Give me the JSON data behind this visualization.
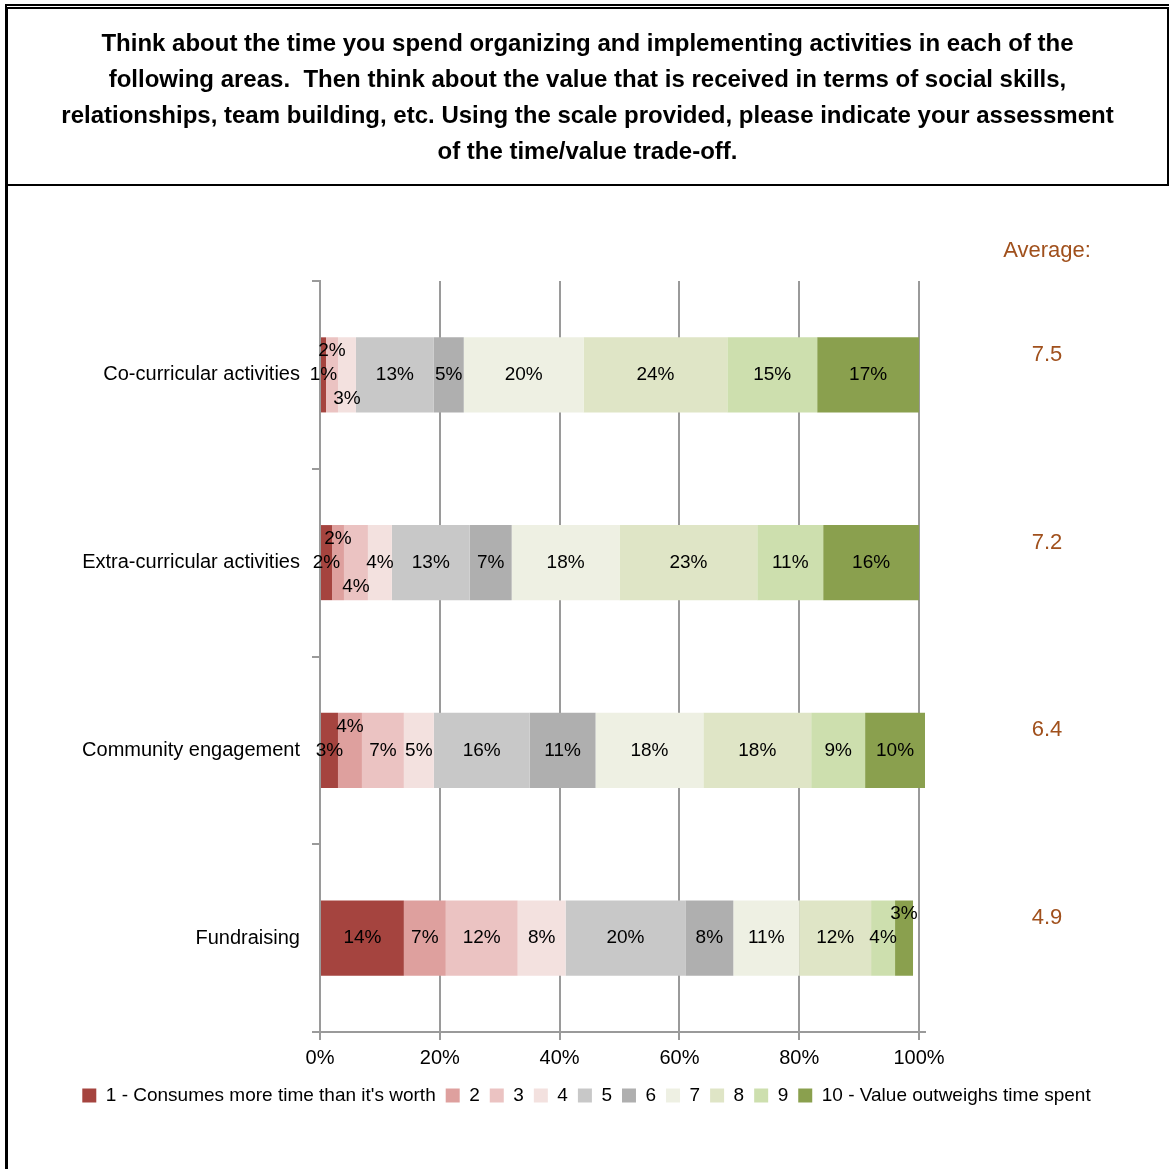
{
  "chart_data": {
    "type": "bar",
    "orientation": "horizontal",
    "stacked": true,
    "title": "Think about the time you spend organizing and implementing activities in each of the following areas.  Then think about the value that is received in terms of social skills, relationships, team building, etc. Using the scale provided, please indicate your assessment of the time/value trade-off.",
    "categories": [
      "Co-curricular activities",
      "Extra-curricular activities",
      "Community engagement",
      "Fundraising"
    ],
    "series": [
      {
        "name": "1 - Consumes more time than it's worth",
        "color": "#a5443f",
        "values": [
          1,
          2,
          3,
          14
        ],
        "value_labels": [
          "1%",
          "2%",
          "3%",
          "14%"
        ]
      },
      {
        "name": "2",
        "color": "#dea09e",
        "values": [
          0,
          2,
          4,
          7
        ],
        "value_labels": [
          null,
          "2%",
          "4%",
          "7%"
        ]
      },
      {
        "name": "3",
        "color": "#ebc3c2",
        "values": [
          2,
          4,
          7,
          12
        ],
        "value_labels": [
          "2%",
          "4%",
          "7%",
          "12%"
        ]
      },
      {
        "name": "4",
        "color": "#f3e1df",
        "values": [
          3,
          4,
          5,
          8
        ],
        "value_labels": [
          "3%",
          "4%",
          "5%",
          "8%"
        ]
      },
      {
        "name": "5",
        "color": "#c8c8c8",
        "values": [
          13,
          13,
          16,
          20
        ],
        "value_labels": [
          "13%",
          "13%",
          "16%",
          "20%"
        ]
      },
      {
        "name": "6",
        "color": "#afafaf",
        "values": [
          5,
          7,
          11,
          8
        ],
        "value_labels": [
          "5%",
          "7%",
          "11%",
          "8%"
        ]
      },
      {
        "name": "7",
        "color": "#eef0e3",
        "values": [
          20,
          18,
          18,
          11
        ],
        "value_labels": [
          "20%",
          "18%",
          "18%",
          "11%"
        ]
      },
      {
        "name": "8",
        "color": "#dfe5c6",
        "values": [
          24,
          23,
          18,
          12
        ],
        "value_labels": [
          "24%",
          "23%",
          "18%",
          "12%"
        ]
      },
      {
        "name": "9",
        "color": "#cddfae",
        "values": [
          15,
          11,
          9,
          4
        ],
        "value_labels": [
          "15%",
          "11%",
          "9%",
          "4%"
        ]
      },
      {
        "name": "10 - Value outweighs time spent",
        "color": "#8aa04e",
        "values": [
          17,
          16,
          10,
          3
        ],
        "value_labels": [
          "17%",
          "16%",
          "10%",
          "3%"
        ]
      }
    ],
    "xlim": [
      0,
      101
    ],
    "xticks": [
      {
        "value": 0,
        "label": "0%"
      },
      {
        "value": 20,
        "label": "20%"
      },
      {
        "value": 40,
        "label": "40%"
      },
      {
        "value": 60,
        "label": "60%"
      },
      {
        "value": 80,
        "label": "80%"
      },
      {
        "value": 100,
        "label": "100%"
      }
    ],
    "grid": "x",
    "legend": "bottom",
    "annotations": [
      "Average:",
      "7.5",
      "7.2",
      "6.4",
      "4.9"
    ]
  }
}
